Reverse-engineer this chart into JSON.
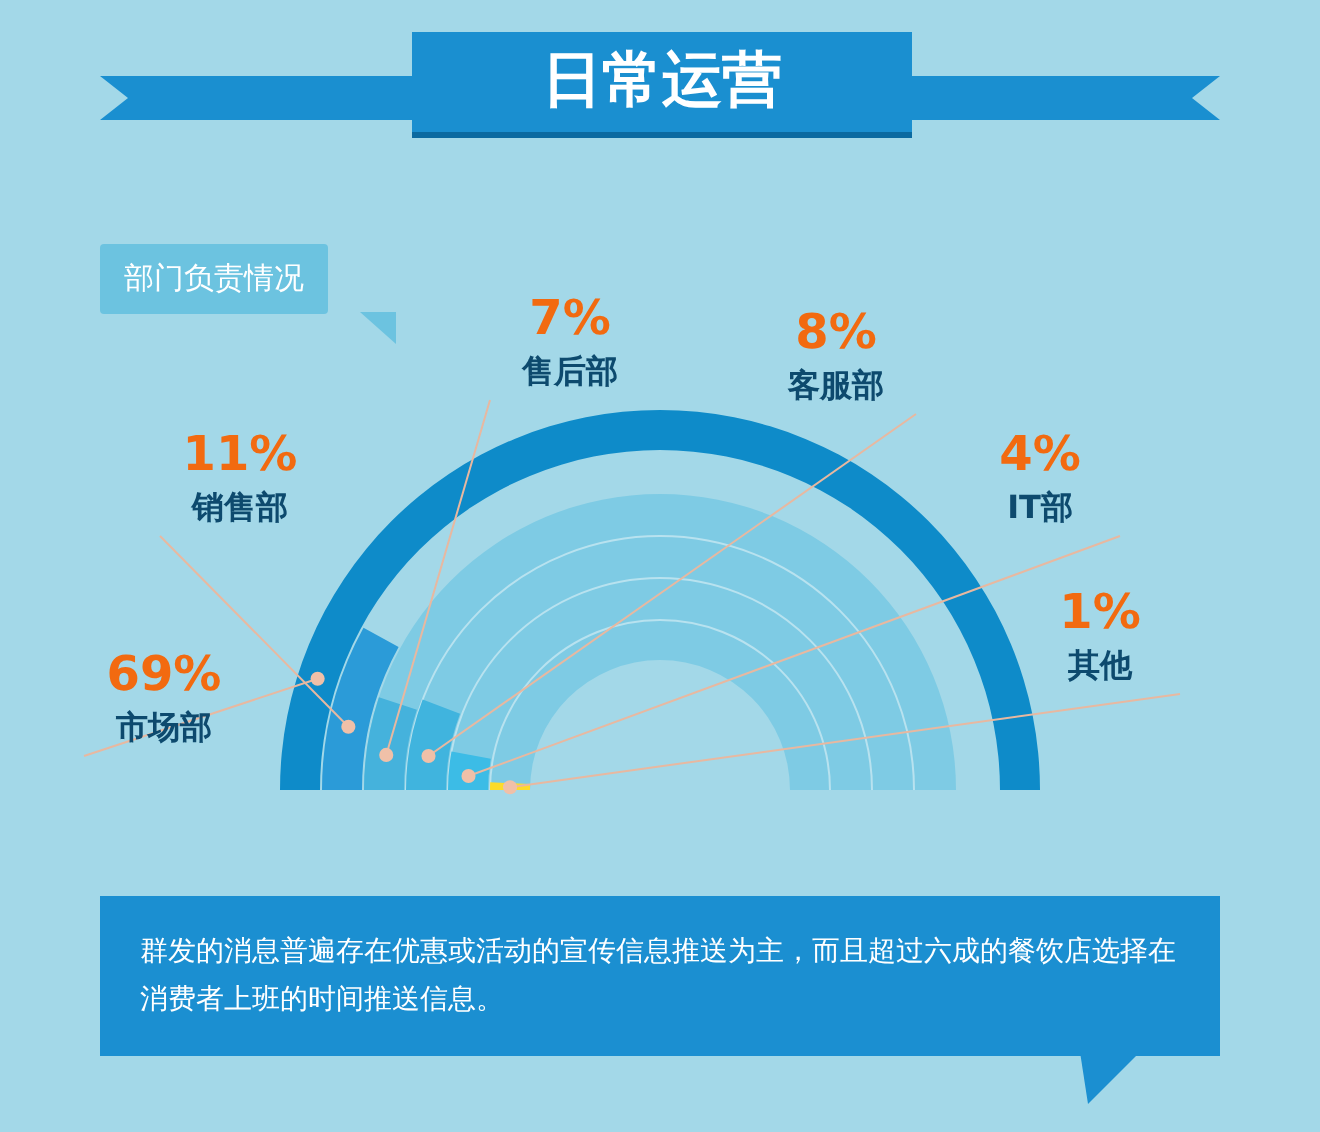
{
  "chart_data": {
    "type": "other",
    "title": "日常运营",
    "subtitle": "部门负责情况",
    "categories": [
      "市场部",
      "销售部",
      "售后部",
      "客服部",
      "IT部",
      "其他"
    ],
    "values": [
      69,
      11,
      7,
      8,
      4,
      1
    ],
    "value_labels": [
      "69%",
      "11%",
      "7%",
      "8%",
      "4%",
      "1%"
    ],
    "colors": [
      "#0e8bc9",
      "#2b9bd8",
      "#45b2dc",
      "#40b4de",
      "#3cbce6",
      "#fddb2a"
    ],
    "annotations": [
      "群发的消息普遍存在优惠或活动的宣传信息推送为主，而且超过六成的餐饮店选择在消费者上班的时间推送信息。"
    ]
  }
}
